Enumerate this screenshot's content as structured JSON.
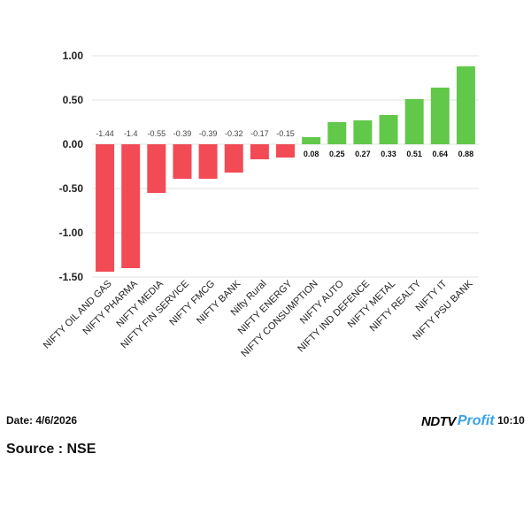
{
  "chart_data": {
    "type": "bar",
    "categories": [
      "NIFTY OIL AND GAS",
      "NIFTY PHARMA",
      "NIFTY MEDIA",
      "NIFTY FIN SERVICE",
      "NIFTY FMCG",
      "NIFTY BANK",
      "Nifty Rural",
      "NIFTY ENERGY",
      "NIFTY CONSUMPTION",
      "NIFTY AUTO",
      "NIFTY IND DEFENCE",
      "NIFTY METAL",
      "NIFTY REALTY",
      "NIFTY IT",
      "NIFTY PSU BANK"
    ],
    "values": [
      -1.44,
      -1.4,
      -0.55,
      -0.39,
      -0.39,
      -0.32,
      -0.17,
      -0.15,
      0.08,
      0.25,
      0.27,
      0.33,
      0.51,
      0.64,
      0.88
    ],
    "value_labels": [
      "-1.44",
      "-1.4",
      "-0.55",
      "-0.39",
      "-0.39",
      "-0.32",
      "-0.17",
      "-0.15",
      "0.08",
      "0.25",
      "0.27",
      "0.33",
      "0.51",
      "0.64",
      "0.88"
    ],
    "y_ticks": [
      "1.00",
      "0.50",
      "0.00",
      "-0.50",
      "-1.00",
      "-1.50"
    ],
    "y_tick_values": [
      1.0,
      0.5,
      0.0,
      -0.5,
      -1.0,
      -1.5
    ],
    "ylim": [
      -1.5,
      1.0
    ],
    "grid": true,
    "colors": {
      "negative": "#f24b55",
      "positive": "#62c84a"
    }
  },
  "footer": {
    "date": "Date: 4/6/2026",
    "time": "Time: 10:10",
    "source": "Source : NSE"
  },
  "logo": {
    "part1": "NDTV",
    "part2": "Profit"
  }
}
